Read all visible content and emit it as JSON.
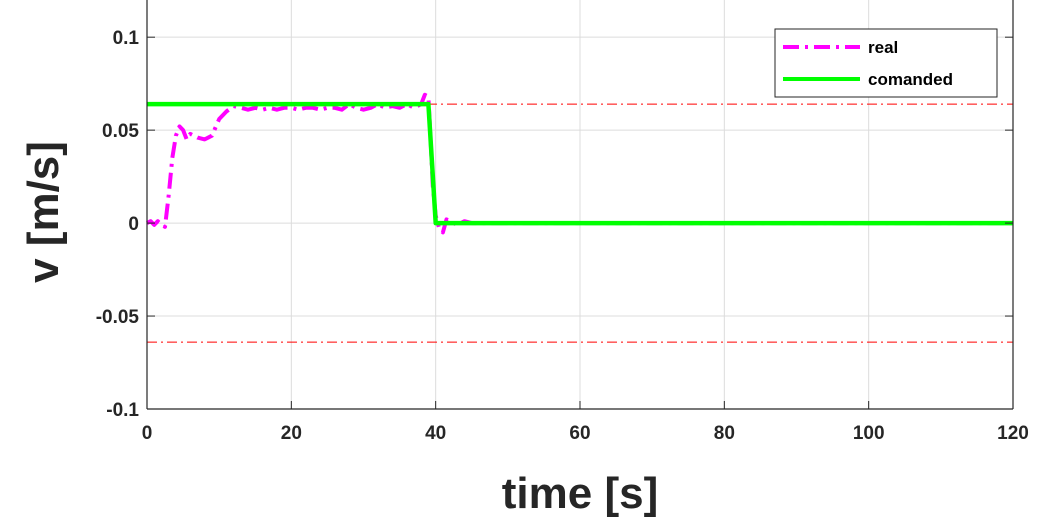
{
  "chart_data": {
    "type": "line",
    "xlabel": "time [s]",
    "ylabel": "v [m/s]",
    "xlim": [
      0,
      120
    ],
    "ylim": [
      -0.1,
      0.12
    ],
    "xticks": [
      0,
      20,
      40,
      60,
      80,
      100,
      120
    ],
    "xtick_labels": [
      "0",
      "20",
      "40",
      "60",
      "80",
      "100",
      "120"
    ],
    "yticks": [
      -0.1,
      -0.05,
      0,
      0.05,
      0.1
    ],
    "ytick_labels": [
      "-0.1",
      "-0.05",
      "0",
      "0.05",
      "0.1"
    ],
    "grid": true,
    "legend_position": "top-right",
    "series": [
      {
        "name": "real",
        "color": "#ff00ff",
        "style": "dashdot",
        "x": [
          0,
          0.5,
          1,
          1.5,
          2,
          2.5,
          3,
          3.5,
          4,
          4.5,
          5,
          5.5,
          6,
          7,
          8,
          9,
          10,
          11,
          12,
          13,
          14,
          15,
          16,
          17,
          18,
          19,
          20,
          21,
          22,
          23,
          24,
          25,
          26,
          27,
          28,
          29,
          30,
          31,
          32,
          33,
          34,
          35,
          36,
          37,
          38,
          38.5,
          39,
          39.3,
          39.6,
          40,
          40.5,
          41,
          41.5,
          42,
          43,
          44,
          45,
          50,
          60,
          80,
          100,
          120
        ],
        "y": [
          0,
          0.001,
          -0.001,
          0.001,
          -0.001,
          -0.002,
          0.015,
          0.035,
          0.047,
          0.052,
          0.05,
          0.045,
          0.048,
          0.046,
          0.045,
          0.047,
          0.056,
          0.06,
          0.063,
          0.062,
          0.061,
          0.062,
          0.061,
          0.062,
          0.061,
          0.062,
          0.062,
          0.061,
          0.062,
          0.062,
          0.061,
          0.062,
          0.062,
          0.061,
          0.064,
          0.062,
          0.061,
          0.062,
          0.064,
          0.062,
          0.063,
          0.062,
          0.064,
          0.062,
          0.064,
          0.069,
          0.068,
          0.045,
          0.02,
          0.004,
          -0.003,
          -0.005,
          0.002,
          0.001,
          -0.001,
          0.001,
          0,
          0,
          0,
          0,
          0,
          0
        ]
      },
      {
        "name": "comanded",
        "color": "#00ff00",
        "style": "solid",
        "x": [
          0,
          39,
          40,
          120
        ],
        "y": [
          0.064,
          0.064,
          0,
          0
        ]
      }
    ],
    "reference_lines": [
      {
        "y": 0.064,
        "color": "#ff0000",
        "style": "dashdot"
      },
      {
        "y": -0.064,
        "color": "#ff0000",
        "style": "dashdot"
      }
    ]
  }
}
